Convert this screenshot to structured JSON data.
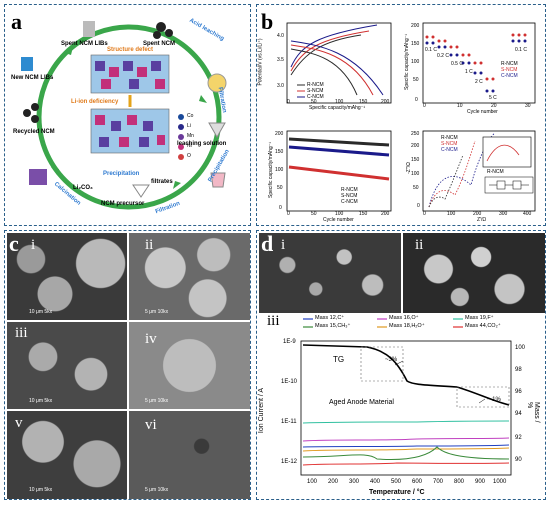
{
  "panels": {
    "a": {
      "label": "a",
      "cycle": [
        "Spent NCM LIBs",
        "Spent NCM",
        "Acid leaching",
        "Filtration",
        "leaching solution",
        "Precipitation",
        "Filtration",
        "NCM precursor",
        "Calcination",
        "Recycled NCM",
        "New NCM LIBs"
      ],
      "center": {
        "defect": "Structure defect",
        "li_def": "Li-ion deficiency",
        "filtrates": "filtrates",
        "li2co3": "Li₂CO₃",
        "precip": "Precipitation"
      },
      "legend": [
        "Co",
        "Li",
        "Mn",
        "Ni",
        "O"
      ]
    },
    "b": {
      "label": "b",
      "charge_plot": {
        "ylabel": "Potential/V (vs.Li/Li⁺)",
        "xlabel": "Specific capacity/mAhg⁻¹",
        "legend": [
          "R-NCM",
          "S-NCM",
          "C-NCM"
        ],
        "yticks": [
          "4.0",
          "3.5",
          "3.0"
        ],
        "xticks": [
          "0",
          "50",
          "100",
          "150",
          "200"
        ]
      },
      "rate_plot": {
        "ylabel": "Specific capacity/mAhg⁻¹",
        "xlabel": "Cycle number",
        "legend": [
          "R-NCM",
          "S-NCM",
          "C-NCM"
        ],
        "rates": [
          "0.1 C",
          "0.2 C",
          "0.5 C",
          "1 C",
          "2 C",
          "5 C",
          "0.1 C"
        ],
        "yticks": [
          "200",
          "150",
          "100",
          "50",
          "0"
        ],
        "xticks": [
          "0",
          "10",
          "20",
          "30"
        ]
      },
      "cycle_plot": {
        "ylabel": "Specific capacity/mAhg⁻¹",
        "xlabel": "Cycle number",
        "legend": [
          "R-NCM",
          "S-NCM",
          "C-NCM"
        ],
        "yticks": [
          "200",
          "150",
          "100",
          "50",
          "0"
        ],
        "xticks": [
          "0",
          "50",
          "100",
          "150",
          "200"
        ]
      },
      "eis_plot": {
        "ylabel": "-Z''/Ω",
        "xlabel": "Z'/Ω",
        "legend": [
          "R-NCM",
          "S-NCM",
          "C-NCM"
        ],
        "inset_label": "R-NCM",
        "yticks": [
          "250",
          "200",
          "150",
          "100",
          "50",
          "0"
        ],
        "xticks": [
          "0",
          "100",
          "200",
          "300",
          "400"
        ]
      }
    },
    "c": {
      "label": "c",
      "subs": [
        "i",
        "ii",
        "iii",
        "iv",
        "v",
        "vi"
      ],
      "scales": [
        "10 μm 5kx",
        "5 μm 10kx",
        "10 μm 5kx",
        "5 μm 10kx",
        "10 μm 5kx",
        "5 μm 10kx"
      ]
    },
    "d": {
      "label": "d",
      "subs": [
        "i",
        "ii",
        "iii"
      ],
      "ms_plot": {
        "legend": [
          "Mass 12,C⁺",
          "Mass 16,O⁺",
          "Mass 19,F⁺",
          "Mass 15,CH₃⁺",
          "Mass 18,H₂O⁺",
          "Mass 44,CO₂⁺"
        ],
        "tg": "TG",
        "pct3": "~3%",
        "pct1": "~ 1%",
        "material": "Aged Anode Material",
        "ylabel_left": "Ion Current / A",
        "ylabel_right": "Mass / %",
        "xlabel": "Temperature / °C",
        "yticks_left": [
          "1E-9",
          "1E-10",
          "1E-11",
          "1E-12"
        ],
        "yticks_right": [
          "100",
          "98",
          "96",
          "94",
          "92",
          "90"
        ],
        "xticks": [
          "100",
          "200",
          "300",
          "400",
          "500",
          "600",
          "700",
          "800",
          "900",
          "1000"
        ]
      }
    }
  }
}
